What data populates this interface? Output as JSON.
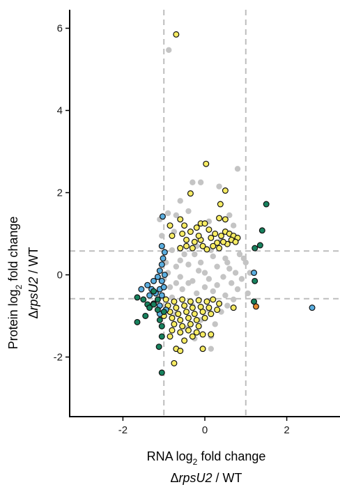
{
  "chart_data": {
    "type": "scatter",
    "xlim": [
      -3.3,
      3.3
    ],
    "ylim": [
      -3.45,
      6.45
    ],
    "xticks": [
      -2,
      0,
      2
    ],
    "yticks": [
      -2,
      0,
      2,
      4,
      6
    ],
    "xtick_labels": [
      "-2",
      "0",
      "2"
    ],
    "ytick_labels": [
      "-2",
      "0",
      "2",
      "4",
      "6"
    ],
    "xlabel_line1": {
      "prefix": "RNA log",
      "sub": "2",
      "suffix": " fold change"
    },
    "xlabel_line2": {
      "delta": "Δ",
      "gene": "rpsU2",
      "rest": " / WT"
    },
    "ylabel_line1": {
      "prefix": "Protein log",
      "sub": "2",
      "suffix": " fold change"
    },
    "ylabel_line2": {
      "delta": "Δ",
      "gene": "rpsU2",
      "rest": " / WT"
    },
    "thresholds": {
      "x": [
        -1,
        1
      ],
      "y": [
        -0.58,
        0.58
      ]
    },
    "grid": false,
    "colors": {
      "background_points": "#c4c4c4",
      "yellow": "#f7ec63",
      "blue": "#5aaee0",
      "green": "#17825e",
      "orange": "#e98a30",
      "outline": "#111111",
      "threshold_line": "#bdbdbd"
    },
    "series": [
      {
        "key": "grey",
        "points": [
          [
            -0.88,
            5.47
          ],
          [
            0.8,
            2.58
          ],
          [
            -0.3,
            2.25
          ],
          [
            -0.1,
            2.25
          ],
          [
            0.35,
            2.15
          ],
          [
            -0.6,
            1.8
          ],
          [
            -0.4,
            1.55
          ],
          [
            -0.9,
            1.5
          ],
          [
            -0.7,
            1.45
          ],
          [
            -1.1,
            1.35
          ],
          [
            -0.5,
            1.2
          ],
          [
            -0.2,
            1.15
          ],
          [
            0.1,
            1.3
          ],
          [
            0.6,
            1.45
          ],
          [
            0.7,
            1.2
          ],
          [
            -0.75,
            1.05
          ],
          [
            -1.05,
            0.95
          ],
          [
            0.4,
            0.85
          ],
          [
            -0.2,
            0.7
          ],
          [
            0.2,
            0.45
          ],
          [
            0.5,
            0.4
          ],
          [
            -0.5,
            0.5
          ],
          [
            -0.8,
            0.6
          ],
          [
            0.85,
            0.5
          ],
          [
            -0.95,
            0.3
          ],
          [
            -0.7,
            0.2
          ],
          [
            -0.4,
            0.25
          ],
          [
            -0.1,
            0.3
          ],
          [
            0.3,
            0.2
          ],
          [
            0.6,
            0.15
          ],
          [
            0.75,
            0.05
          ],
          [
            0.9,
            -0.1
          ],
          [
            0.8,
            -0.35
          ],
          [
            0.5,
            -0.5
          ],
          [
            0.2,
            -0.4
          ],
          [
            -0.2,
            -0.45
          ],
          [
            -0.55,
            -0.35
          ],
          [
            -0.85,
            -0.3
          ],
          [
            -1.0,
            -0.1
          ],
          [
            -0.9,
            0.05
          ],
          [
            -0.6,
            -0.05
          ],
          [
            -0.3,
            -0.15
          ],
          [
            0.0,
            0.05
          ],
          [
            0.45,
            -0.05
          ],
          [
            0.3,
            -0.25
          ],
          [
            0.0,
            -0.3
          ],
          [
            -0.4,
            -0.2
          ],
          [
            -0.7,
            -0.2
          ],
          [
            0.65,
            -0.2
          ],
          [
            0.1,
            -0.1
          ],
          [
            -0.15,
            0.1
          ],
          [
            0.55,
            0.3
          ],
          [
            -0.6,
            0.35
          ],
          [
            -0.25,
            0.5
          ],
          [
            0.15,
            0.6
          ],
          [
            -0.8,
            -0.55
          ],
          [
            0.7,
            -0.6
          ],
          [
            1.0,
            0.3
          ],
          [
            1.05,
            -0.45
          ],
          [
            0.95,
            0.4
          ],
          [
            1.1,
            0.05
          ],
          [
            -1.15,
            -0.7
          ],
          [
            -0.3,
            -0.75
          ],
          [
            0.1,
            -0.85
          ],
          [
            0.4,
            -0.9
          ],
          [
            0.25,
            -1.2
          ],
          [
            -0.1,
            -1.1
          ],
          [
            -0.45,
            -1.3
          ],
          [
            0.15,
            -1.5
          ],
          [
            -0.25,
            -1.55
          ],
          [
            0.15,
            -1.8
          ],
          [
            -0.7,
            -0.95
          ],
          [
            0.55,
            -0.75
          ]
        ]
      },
      {
        "key": "yellow",
        "points": [
          [
            -0.7,
            5.85
          ],
          [
            0.03,
            2.7
          ],
          [
            -0.35,
            1.98
          ],
          [
            0.5,
            2.05
          ],
          [
            0.38,
            1.72
          ],
          [
            0.35,
            1.38
          ],
          [
            -0.6,
            1.35
          ],
          [
            -0.1,
            1.25
          ],
          [
            0.5,
            1.35
          ],
          [
            -0.5,
            1.2
          ],
          [
            -0.85,
            1.2
          ],
          [
            -0.2,
            1.15
          ],
          [
            0.0,
            1.25
          ],
          [
            0.1,
            1.1
          ],
          [
            0.25,
            1.0
          ],
          [
            0.5,
            1.05
          ],
          [
            0.6,
            1.0
          ],
          [
            0.7,
            0.95
          ],
          [
            0.8,
            0.9
          ],
          [
            -0.35,
            1.05
          ],
          [
            -0.55,
            1.0
          ],
          [
            -0.8,
            0.95
          ],
          [
            0.4,
            0.95
          ],
          [
            0.15,
            0.9
          ],
          [
            -0.1,
            0.85
          ],
          [
            -0.25,
            0.8
          ],
          [
            -0.45,
            0.85
          ],
          [
            0.3,
            0.78
          ],
          [
            0.55,
            0.75
          ],
          [
            0.65,
            0.85
          ],
          [
            0.35,
            0.65
          ],
          [
            -0.05,
            0.7
          ],
          [
            -0.3,
            0.65
          ],
          [
            -0.6,
            0.65
          ],
          [
            0.05,
            0.62
          ],
          [
            0.2,
            0.7
          ],
          [
            0.45,
            0.8
          ],
          [
            0.75,
            0.8
          ],
          [
            -0.15,
            0.95
          ],
          [
            -0.45,
            0.7
          ],
          [
            -0.95,
            -0.6
          ],
          [
            -0.75,
            -0.65
          ],
          [
            -0.55,
            -0.6
          ],
          [
            -0.35,
            -0.65
          ],
          [
            -0.15,
            -0.62
          ],
          [
            0.05,
            -0.65
          ],
          [
            0.2,
            -0.6
          ],
          [
            -0.9,
            -0.75
          ],
          [
            -0.7,
            -0.8
          ],
          [
            -0.5,
            -0.75
          ],
          [
            -0.3,
            -0.8
          ],
          [
            -0.1,
            -0.78
          ],
          [
            0.1,
            -0.8
          ],
          [
            -0.85,
            -0.9
          ],
          [
            -0.65,
            -0.95
          ],
          [
            -0.45,
            -0.9
          ],
          [
            -0.25,
            -0.95
          ],
          [
            -0.05,
            -0.9
          ],
          [
            0.15,
            -0.95
          ],
          [
            -0.8,
            -1.05
          ],
          [
            -0.6,
            -1.1
          ],
          [
            -0.4,
            -1.05
          ],
          [
            -0.2,
            -1.1
          ],
          [
            0.0,
            -1.05
          ],
          [
            -0.75,
            -1.2
          ],
          [
            -0.55,
            -1.25
          ],
          [
            -0.35,
            -1.2
          ],
          [
            -0.15,
            -1.25
          ],
          [
            -0.8,
            -1.35
          ],
          [
            -0.6,
            -1.4
          ],
          [
            -0.4,
            -1.35
          ],
          [
            -0.2,
            -1.4
          ],
          [
            -0.85,
            -1.5
          ],
          [
            -0.3,
            -1.5
          ],
          [
            -0.05,
            -1.45
          ],
          [
            -0.7,
            -1.8
          ],
          [
            -0.6,
            -1.85
          ],
          [
            -0.75,
            -2.15
          ],
          [
            -0.05,
            -1.8
          ],
          [
            0.15,
            -1.45
          ],
          [
            0.3,
            -0.85
          ],
          [
            0.35,
            -0.7
          ],
          [
            0.7,
            -0.8
          ],
          [
            -1.0,
            -1.0
          ],
          [
            -0.5,
            -1.6
          ]
        ]
      },
      {
        "key": "blue",
        "points": [
          [
            -1.03,
            1.42
          ],
          [
            -1.05,
            0.7
          ],
          [
            -0.98,
            0.55
          ],
          [
            -1.02,
            0.4
          ],
          [
            -1.05,
            0.25
          ],
          [
            -1.1,
            0.1
          ],
          [
            -0.98,
            0.0
          ],
          [
            -1.15,
            -0.05
          ],
          [
            -1.05,
            -0.15
          ],
          [
            -1.25,
            -0.15
          ],
          [
            -1.4,
            -0.25
          ],
          [
            -1.55,
            -0.35
          ],
          [
            -1.3,
            -0.35
          ],
          [
            -1.1,
            -0.35
          ],
          [
            -1.0,
            -0.3
          ],
          [
            -1.2,
            -0.45
          ],
          [
            -1.05,
            -0.5
          ],
          [
            -1.35,
            -0.5
          ],
          [
            -1.25,
            -0.7
          ],
          [
            -1.1,
            -0.75
          ],
          [
            -0.95,
            -0.85
          ],
          [
            -1.1,
            -0.95
          ],
          [
            1.2,
            0.05
          ],
          [
            2.62,
            -0.8
          ]
        ]
      },
      {
        "key": "green",
        "points": [
          [
            1.5,
            1.72
          ],
          [
            1.4,
            1.08
          ],
          [
            1.35,
            0.72
          ],
          [
            1.22,
            0.65
          ],
          [
            1.22,
            -0.15
          ],
          [
            1.2,
            -0.65
          ],
          [
            -1.25,
            -0.4
          ],
          [
            -1.5,
            -0.6
          ],
          [
            -1.4,
            -0.72
          ],
          [
            -1.25,
            -0.72
          ],
          [
            -1.15,
            -0.6
          ],
          [
            -1.65,
            -0.55
          ],
          [
            -1.35,
            -0.8
          ],
          [
            -1.15,
            -0.85
          ],
          [
            -1.0,
            -0.9
          ],
          [
            -1.1,
            -1.1
          ],
          [
            -1.05,
            -1.25
          ],
          [
            -1.45,
            -1.0
          ],
          [
            -1.65,
            -1.15
          ],
          [
            -1.05,
            -1.5
          ],
          [
            -1.12,
            -1.75
          ],
          [
            -1.05,
            -2.38
          ]
        ]
      },
      {
        "key": "orange",
        "points": [
          [
            1.25,
            -0.77
          ]
        ]
      }
    ]
  }
}
